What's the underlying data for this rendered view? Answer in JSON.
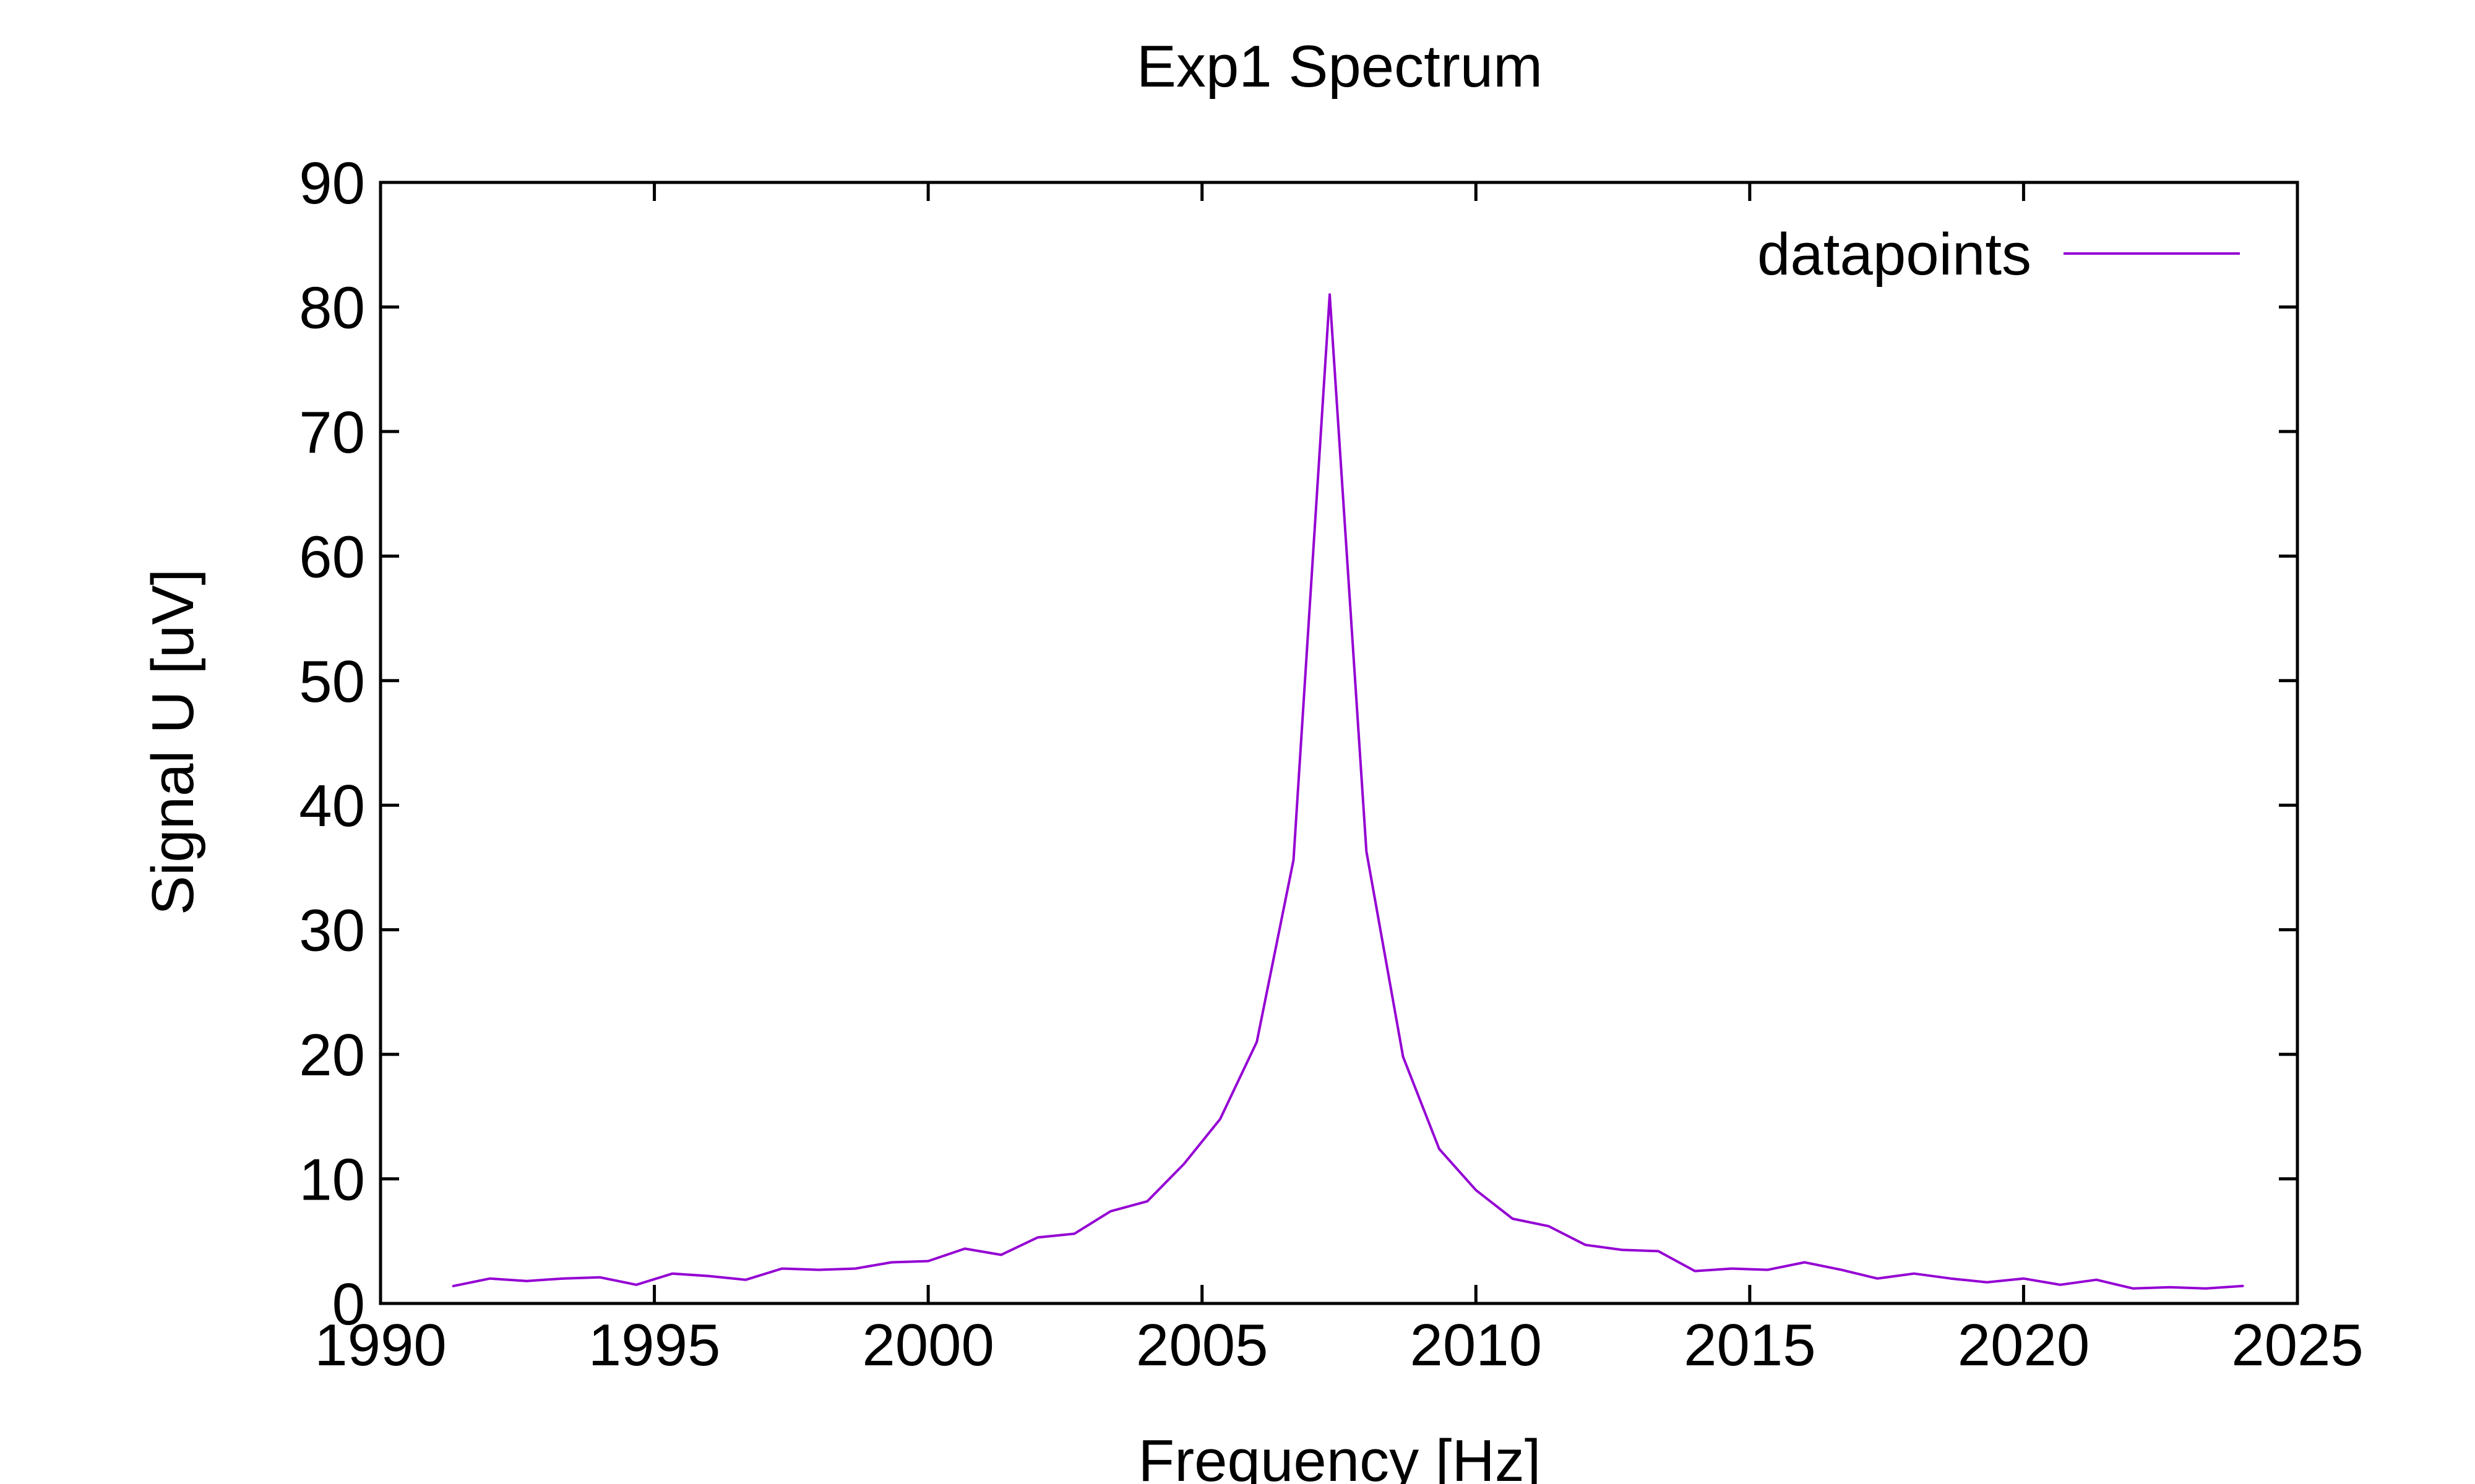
{
  "chart_data": {
    "type": "line",
    "title": "Exp1 Spectrum",
    "xlabel": "Frequency [Hz]",
    "ylabel": "Signal U [uV]",
    "xlim": [
      1990,
      2025
    ],
    "ylim": [
      0,
      90
    ],
    "x_ticks": [
      1990,
      1995,
      2000,
      2005,
      2010,
      2015,
      2020,
      2025
    ],
    "y_ticks": [
      0,
      10,
      20,
      30,
      40,
      50,
      60,
      70,
      80,
      90
    ],
    "grid": false,
    "legend_position": "top-right",
    "series": [
      {
        "name": "datapoints",
        "color": "#9400d3",
        "x": [
          1991.33,
          1992,
          1992.67,
          1993.33,
          1994,
          1994.67,
          1995.33,
          1996,
          1996.67,
          1997.33,
          1998,
          1998.67,
          1999.33,
          2000,
          2000.67,
          2001.33,
          2002,
          2002.67,
          2003.33,
          2004,
          2004.67,
          2005.33,
          2006,
          2006.67,
          2007.33,
          2008,
          2008.67,
          2009.33,
          2010,
          2010.67,
          2011.33,
          2012,
          2012.67,
          2013.33,
          2014,
          2014.67,
          2015.33,
          2016,
          2016.67,
          2017.33,
          2018,
          2018.67,
          2019.33,
          2020,
          2020.67,
          2021.33,
          2022,
          2022.67,
          2023.33,
          2024
        ],
        "y": [
          1.4,
          2.0,
          1.8,
          2.0,
          2.1,
          1.5,
          2.4,
          2.2,
          1.9,
          2.8,
          2.7,
          2.8,
          3.3,
          3.4,
          4.4,
          3.9,
          5.3,
          5.6,
          7.4,
          8.2,
          11.2,
          14.8,
          21.0,
          35.6,
          81.0,
          36.3,
          19.8,
          12.4,
          9.1,
          6.8,
          6.2,
          4.7,
          4.3,
          4.2,
          2.6,
          2.8,
          2.7,
          3.3,
          2.7,
          2.0,
          2.4,
          2.0,
          1.7,
          2.0,
          1.5,
          1.9,
          1.2,
          1.3,
          1.2,
          1.4
        ]
      }
    ]
  }
}
